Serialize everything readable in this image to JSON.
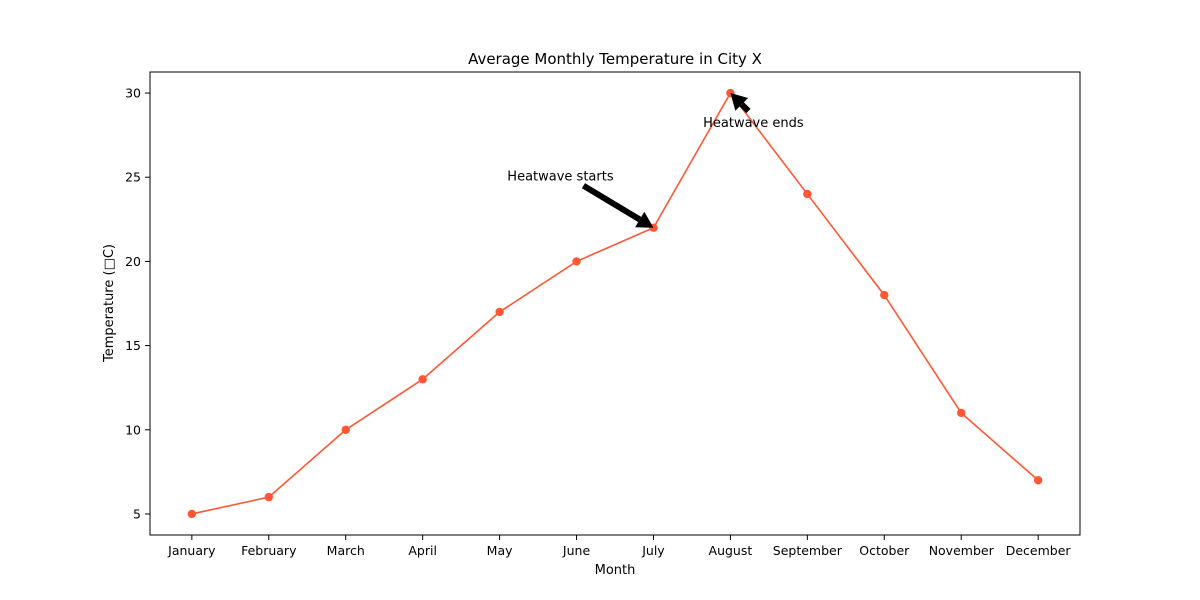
{
  "chart_data": {
    "type": "line",
    "title": "Average Monthly Temperature in City X",
    "xlabel": "Month",
    "ylabel": "Temperature (□C)",
    "categories": [
      "January",
      "February",
      "March",
      "April",
      "May",
      "June",
      "July",
      "August",
      "September",
      "October",
      "November",
      "December"
    ],
    "series": [
      {
        "values": [
          5,
          6,
          10,
          13,
          17,
          20,
          22,
          30,
          24,
          18,
          11,
          7
        ],
        "color": "#ff5733"
      }
    ],
    "yticks": [
      5,
      10,
      15,
      20,
      25,
      30
    ],
    "ylim": [
      3.75,
      31.25
    ],
    "grid": false,
    "annotations": [
      {
        "text": "Heatwave starts",
        "target": {
          "category": "July",
          "value": 22
        }
      },
      {
        "text": "Heatwave ends",
        "target": {
          "category": "August",
          "value": 30
        }
      }
    ]
  }
}
